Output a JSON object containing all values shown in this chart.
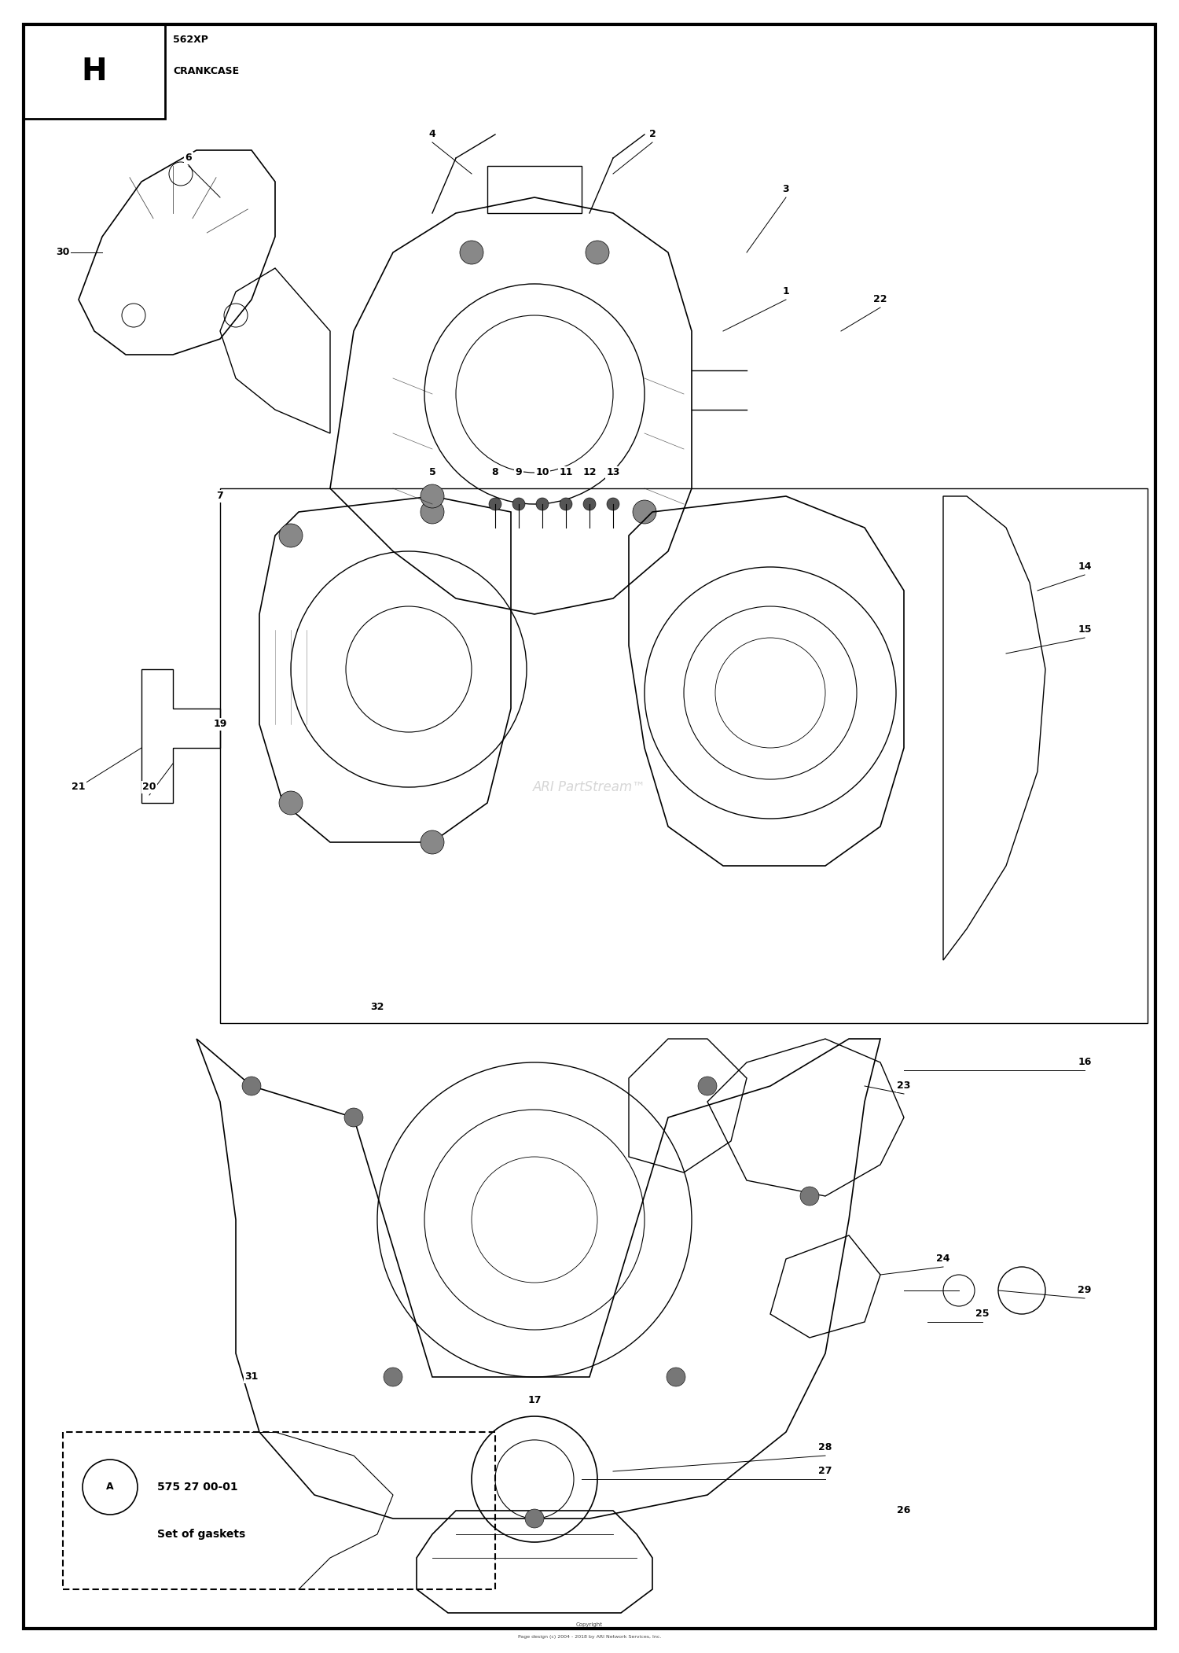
{
  "title": "562XP\nCRANKCASE",
  "section_letter": "H",
  "background_color": "#ffffff",
  "border_color": "#000000",
  "text_color": "#000000",
  "watermark": "ARI PartStream™",
  "copyright_line1": "Copyright",
  "copyright_line2": "Page design (c) 2004 - 2018 by ARI Network Services, Inc.",
  "part_numbers": [
    1,
    2,
    3,
    4,
    5,
    6,
    7,
    8,
    9,
    10,
    11,
    12,
    13,
    14,
    15,
    16,
    17,
    19,
    20,
    21,
    22,
    23,
    24,
    25,
    26,
    27,
    28,
    29,
    30,
    31,
    32
  ],
  "legend_part": "A",
  "legend_part_number": "575 27 00-01",
  "legend_description": "Set of gaskets",
  "fig_width": 15.0,
  "fig_height": 21.02,
  "outer_border_lw": 3,
  "inner_border_lw": 1.5
}
